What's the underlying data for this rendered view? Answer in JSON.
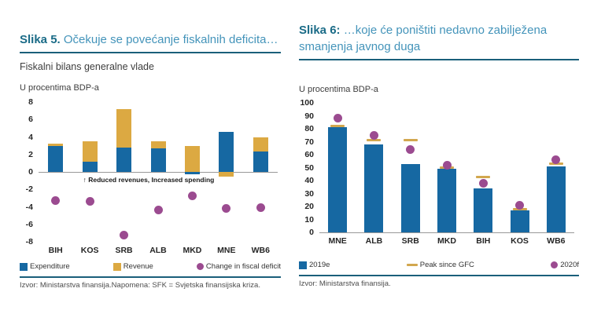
{
  "colors": {
    "bar_blue": "#1668a2",
    "bar_yellow": "#dca942",
    "marker_purple": "#9b4b90",
    "dash_tan": "#d2a74e",
    "title_label_blue": "#1a6b87",
    "title_text_blue": "#4494ba",
    "rule_blue": "#1a5f7a",
    "axis_gray": "#999999"
  },
  "figures": [
    {
      "title_label": "Slika 5.",
      "title_rest": " Očekuje se povećanje fiskalnih deficita…",
      "subtitle": "Fiskalni bilans generalne vlade",
      "units": "U procentima BDP-a",
      "source": "Izvor: Ministarstva finansija.Napomena: SFK = Svjetska finansijska kriza."
    },
    {
      "title_label": "Slika 6:",
      "title_rest": " …koje će poništiti nedavno zabilježena smanjenja javnog duga",
      "subtitle": "",
      "units": "U procentima BDP-a",
      "source": "Izvor: Ministarstva finansija."
    }
  ],
  "chart_data": [
    {
      "type": "bar",
      "subtype": "stacked-bars-with-points",
      "title": "Fiskalni bilans generalne vlade",
      "ylabel": "U procentima BDP-a",
      "categories": [
        "BIH",
        "KOS",
        "SRB",
        "ALB",
        "MKD",
        "MNE",
        "WB6"
      ],
      "series": [
        {
          "name": "Expenditure",
          "kind": "bar",
          "color": "#1668a2",
          "values": [
            3.0,
            1.2,
            2.8,
            2.7,
            -0.3,
            4.6,
            2.3
          ]
        },
        {
          "name": "Revenue",
          "kind": "bar",
          "color": "#dca942",
          "values": [
            0.2,
            2.3,
            4.4,
            0.8,
            3.0,
            -0.5,
            1.7
          ]
        },
        {
          "name": "Change in fiscal deficit",
          "kind": "point",
          "color": "#9b4b90",
          "values": [
            -3.3,
            -3.4,
            -7.2,
            -4.4,
            -2.7,
            -4.2,
            -4.1
          ]
        }
      ],
      "ylim": [
        -8,
        8
      ],
      "yticks": [
        8,
        6,
        4,
        2,
        0,
        -2,
        -4,
        -6,
        -8
      ],
      "annotation": "↑ Reduced revenues, Increased spending",
      "grid": false,
      "legend_position": "bottom"
    },
    {
      "type": "bar",
      "subtype": "bars-with-markers",
      "title": "",
      "ylabel": "U procentima BDP-a",
      "categories": [
        "MNE",
        "ALB",
        "SRB",
        "MKD",
        "BIH",
        "KOS",
        "WB6"
      ],
      "series": [
        {
          "name": "2019e",
          "kind": "bar",
          "color": "#1668a2",
          "values": [
            81,
            68,
            53,
            49,
            34,
            17,
            51
          ]
        },
        {
          "name": "Peak since GFC",
          "kind": "dash",
          "color": "#d2a74e",
          "values": [
            82,
            71,
            71,
            50,
            43,
            18,
            53
          ]
        },
        {
          "name": "2020f",
          "kind": "point",
          "color": "#9b4b90",
          "values": [
            88,
            75,
            64,
            52,
            38,
            21,
            56
          ]
        }
      ],
      "ylim": [
        0,
        100
      ],
      "yticks": [
        100,
        90,
        80,
        70,
        60,
        50,
        40,
        30,
        20,
        10,
        0
      ],
      "grid": false,
      "legend_position": "bottom"
    }
  ]
}
